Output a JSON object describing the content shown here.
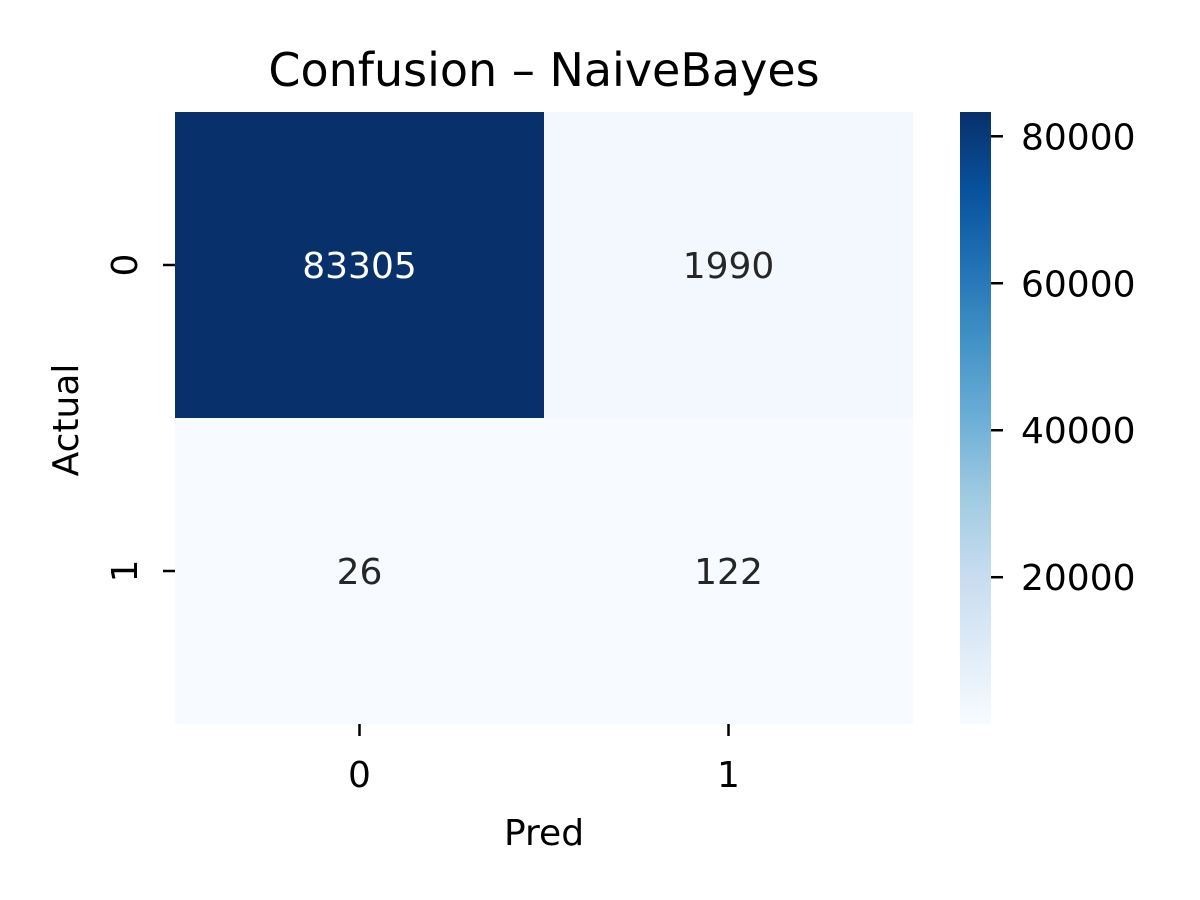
{
  "chart_data": {
    "type": "heatmap",
    "title": "Confusion – NaiveBayes",
    "xlabel": "Pred",
    "ylabel": "Actual",
    "x_categories": [
      "0",
      "1"
    ],
    "y_categories": [
      "0",
      "1"
    ],
    "values": [
      [
        83305,
        1990
      ],
      [
        26,
        122
      ]
    ],
    "colormap": "Blues",
    "value_range": [
      26,
      83305
    ],
    "colorbar_ticks": [
      20000,
      40000,
      60000,
      80000
    ],
    "colorbar_tick_labels": [
      "20000",
      "40000",
      "60000",
      "80000"
    ],
    "colors": {
      "low": "#f7fbff",
      "high": "#08306b",
      "annot_dark": "#262626",
      "annot_light": "#ffffff"
    }
  }
}
